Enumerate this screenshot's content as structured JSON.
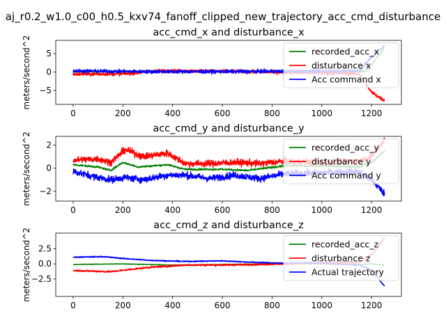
{
  "figure": {
    "suptitle": "aj_r0.2_w1.0_c00_h0.5_kxv74_fanoff_clipped_new_trajectory_acc_cmd_disturbance"
  },
  "chart_data": [
    {
      "type": "line",
      "title": "acc_cmd_x and disturbance_x",
      "xlabel": "",
      "ylabel": "meters/second^2",
      "xlim": [
        -70,
        1320
      ],
      "ylim": [
        -8.8,
        8.6
      ],
      "xticks": [
        0,
        200,
        400,
        600,
        800,
        1000,
        1200
      ],
      "yticks": [
        -5,
        0,
        5
      ],
      "legend_position": "upper right",
      "series": [
        {
          "name": "recorded_acc_x",
          "color": "#008000",
          "base": [
            [
              0,
              0.1
            ],
            [
              300,
              0.2
            ],
            [
              600,
              0.1
            ],
            [
              900,
              0.0
            ],
            [
              1150,
              0.1
            ],
            [
              1180,
              0.2
            ],
            [
              1252,
              6.5
            ]
          ],
          "noise": 0.2
        },
        {
          "name": "disturbance x",
          "color": "#ff0000",
          "base": [
            [
              0,
              -0.6
            ],
            [
              200,
              -0.5
            ],
            [
              350,
              0.3
            ],
            [
              600,
              0.2
            ],
            [
              900,
              -0.1
            ],
            [
              1150,
              -0.5
            ],
            [
              1200,
              -5.5
            ],
            [
              1252,
              -7.8
            ]
          ],
          "noise": 0.5
        },
        {
          "name": "Acc command x",
          "color": "#0000ff",
          "base": [
            [
              0,
              0.3
            ],
            [
              300,
              0.1
            ],
            [
              600,
              0.1
            ],
            [
              900,
              0.2
            ],
            [
              1150,
              0.3
            ],
            [
              1200,
              4.0
            ],
            [
              1252,
              7.2
            ]
          ],
          "noise": 0.5
        }
      ]
    },
    {
      "type": "line",
      "title": "acc_cmd_y and disturbance_y",
      "xlabel": "",
      "ylabel": "meters/second^2",
      "xlim": [
        -70,
        1320
      ],
      "ylim": [
        -2.85,
        2.75
      ],
      "xticks": [
        0,
        200,
        400,
        600,
        800,
        1000,
        1200
      ],
      "yticks": [
        -2,
        0,
        2
      ],
      "legend_position": "upper right",
      "series": [
        {
          "name": "recorded_acc_y",
          "color": "#008000",
          "base": [
            [
              0,
              0.3
            ],
            [
              100,
              0.1
            ],
            [
              150,
              -0.2
            ],
            [
              200,
              0.5
            ],
            [
              260,
              0.1
            ],
            [
              380,
              0.3
            ],
            [
              450,
              -0.1
            ],
            [
              600,
              -0.1
            ],
            [
              700,
              -0.2
            ],
            [
              850,
              0.2
            ],
            [
              1000,
              0.2
            ],
            [
              1150,
              0.1
            ],
            [
              1200,
              0.5
            ],
            [
              1252,
              1.5
            ]
          ],
          "noise": 0.08
        },
        {
          "name": "disturbance y",
          "color": "#ff0000",
          "base": [
            [
              0,
              0.7
            ],
            [
              100,
              0.8
            ],
            [
              150,
              0.5
            ],
            [
              210,
              1.6
            ],
            [
              280,
              1.0
            ],
            [
              380,
              1.3
            ],
            [
              450,
              0.4
            ],
            [
              550,
              0.4
            ],
            [
              650,
              0.5
            ],
            [
              750,
              0.4
            ],
            [
              850,
              0.6
            ],
            [
              1000,
              0.5
            ],
            [
              1150,
              0.6
            ],
            [
              1200,
              1.0
            ],
            [
              1252,
              2.5
            ]
          ],
          "noise": 0.3
        },
        {
          "name": "Acc command y",
          "color": "#0000ff",
          "base": [
            [
              0,
              -0.3
            ],
            [
              100,
              -0.8
            ],
            [
              150,
              -1.0
            ],
            [
              210,
              -0.8
            ],
            [
              280,
              -1.0
            ],
            [
              380,
              -0.6
            ],
            [
              450,
              -0.6
            ],
            [
              550,
              -0.9
            ],
            [
              650,
              -0.6
            ],
            [
              750,
              -0.9
            ],
            [
              850,
              -0.5
            ],
            [
              1000,
              -0.4
            ],
            [
              1150,
              -0.3
            ],
            [
              1200,
              -1.0
            ],
            [
              1252,
              -2.2
            ]
          ],
          "noise": 0.3
        }
      ]
    },
    {
      "type": "line",
      "title": "acc_cmd_z and disturbance_z",
      "xlabel": "",
      "ylabel": "meters/second^2",
      "xlim": [
        -70,
        1320
      ],
      "ylim": [
        -5.4,
        5.1
      ],
      "xticks": [
        0,
        200,
        400,
        600,
        800,
        1000,
        1200
      ],
      "yticks": [
        -2.5,
        0.0,
        2.5
      ],
      "legend_position": "upper right",
      "series": [
        {
          "name": "recorded_acc_z",
          "color": "#008000",
          "base": [
            [
              0,
              -0.1
            ],
            [
              200,
              0.0
            ],
            [
              400,
              -0.2
            ],
            [
              600,
              -0.1
            ],
            [
              800,
              0.0
            ],
            [
              1000,
              0.0
            ],
            [
              1150,
              -0.1
            ],
            [
              1200,
              0.0
            ],
            [
              1252,
              -0.2
            ]
          ],
          "noise": 0.05
        },
        {
          "name": "disturbance z",
          "color": "#ff0000",
          "base": [
            [
              0,
              -1.1
            ],
            [
              150,
              -1.3
            ],
            [
              300,
              -0.6
            ],
            [
              450,
              -0.2
            ],
            [
              600,
              -0.2
            ],
            [
              750,
              -0.1
            ],
            [
              850,
              0.0
            ],
            [
              1000,
              0.1
            ],
            [
              1150,
              0.3
            ],
            [
              1200,
              1.5
            ],
            [
              1252,
              4.3
            ]
          ],
          "noise": 0.15
        },
        {
          "name": "Actual trajectory",
          "color": "#0000ff",
          "base": [
            [
              0,
              1.1
            ],
            [
              120,
              1.2
            ],
            [
              200,
              0.9
            ],
            [
              300,
              0.6
            ],
            [
              450,
              0.4
            ],
            [
              600,
              0.5
            ],
            [
              700,
              0.3
            ],
            [
              850,
              0.1
            ],
            [
              950,
              0.2
            ],
            [
              1050,
              0.0
            ],
            [
              1150,
              -0.2
            ],
            [
              1200,
              -1.0
            ],
            [
              1252,
              -3.7
            ]
          ],
          "noise": 0.1
        }
      ]
    }
  ]
}
